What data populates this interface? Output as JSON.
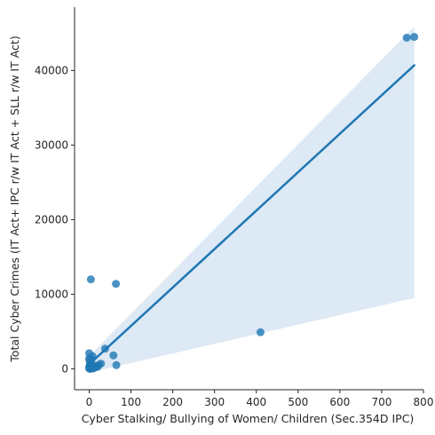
{
  "chart_data": {
    "type": "scatter",
    "title": "",
    "xlabel": "Cyber Stalking/ Bullying of Women/ Children (Sec.354D IPC)",
    "ylabel": "Total Cyber Crimes (IT Act+ IPC r/w IT Act + SLL r/w IT Act)",
    "xlim": [
      -35,
      800
    ],
    "ylim": [
      -2800,
      48500
    ],
    "xticks": [
      0,
      100,
      200,
      300,
      400,
      500,
      600,
      700,
      800
    ],
    "yticks": [
      0,
      10000,
      20000,
      30000,
      40000
    ],
    "grid": false,
    "points": [
      {
        "x": 760,
        "y": 44400
      },
      {
        "x": 778,
        "y": 44500
      },
      {
        "x": 410,
        "y": 4900
      },
      {
        "x": 4,
        "y": 12000
      },
      {
        "x": 64,
        "y": 11400
      },
      {
        "x": 38,
        "y": 2700
      },
      {
        "x": 58,
        "y": 1800
      },
      {
        "x": 0,
        "y": 2100
      },
      {
        "x": 65,
        "y": 500
      },
      {
        "x": 28,
        "y": 700
      },
      {
        "x": 22,
        "y": 500
      },
      {
        "x": 20,
        "y": 250
      },
      {
        "x": 14,
        "y": 400
      },
      {
        "x": 8,
        "y": 1700
      },
      {
        "x": 6,
        "y": 1300
      },
      {
        "x": 4,
        "y": 900
      },
      {
        "x": 2,
        "y": 700
      },
      {
        "x": 1,
        "y": 400
      },
      {
        "x": 0,
        "y": 200
      },
      {
        "x": 0,
        "y": 50
      },
      {
        "x": 2,
        "y": 0
      },
      {
        "x": 3,
        "y": 120
      },
      {
        "x": 10,
        "y": 60
      },
      {
        "x": 6,
        "y": 300
      },
      {
        "x": 12,
        "y": 150
      },
      {
        "x": 1,
        "y": 1100
      },
      {
        "x": 0,
        "y": 1400
      },
      {
        "x": 5,
        "y": 30
      }
    ],
    "regression": {
      "x_start": 0,
      "x_end": 778,
      "y_start": 600,
      "y_end": 40700
    },
    "confidence_band": {
      "upper": [
        [
          0,
          1700
        ],
        [
          778,
          45900
        ]
      ],
      "lower": [
        [
          0,
          -500
        ],
        [
          778,
          9500
        ]
      ]
    },
    "colors": {
      "points": "#1f77b4",
      "line": "#1f77b4",
      "band": "#aac8e4"
    }
  }
}
